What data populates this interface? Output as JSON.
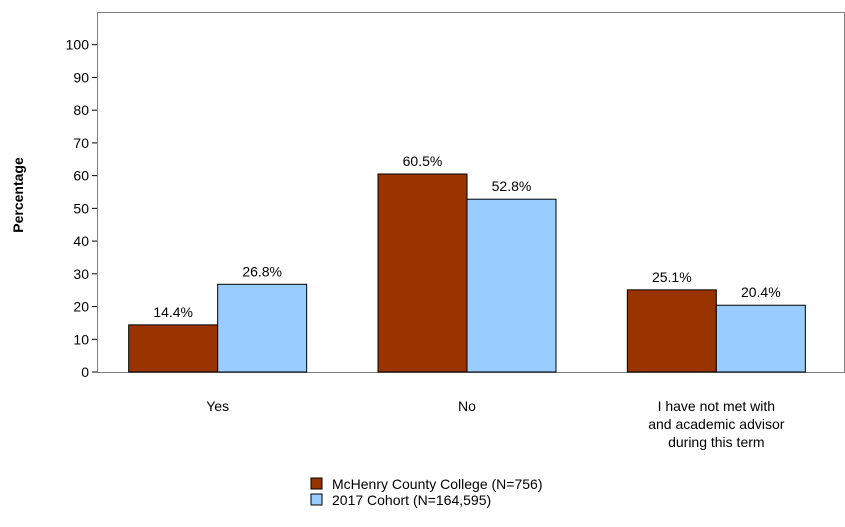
{
  "chart_data": {
    "type": "bar",
    "ylabel": "Percentage",
    "ylim": [
      0,
      100
    ],
    "yticks": [
      0,
      10,
      20,
      30,
      40,
      50,
      60,
      70,
      80,
      90,
      100
    ],
    "categories": [
      [
        "Yes"
      ],
      [
        "No"
      ],
      [
        "I have not met with",
        "and academic advisor",
        "during this term"
      ]
    ],
    "series": [
      {
        "name": "McHenry County College (N=756)",
        "color": "#993300",
        "values": [
          14.4,
          60.5,
          25.1
        ],
        "labels": [
          "14.4%",
          "60.5%",
          "25.1%"
        ]
      },
      {
        "name": "2017 Cohort (N=164,595)",
        "color": "#99ccff",
        "values": [
          26.8,
          52.8,
          20.4
        ],
        "labels": [
          "26.8%",
          "52.8%",
          "20.4%"
        ]
      }
    ],
    "grid": false,
    "legend_position": "bottom"
  }
}
